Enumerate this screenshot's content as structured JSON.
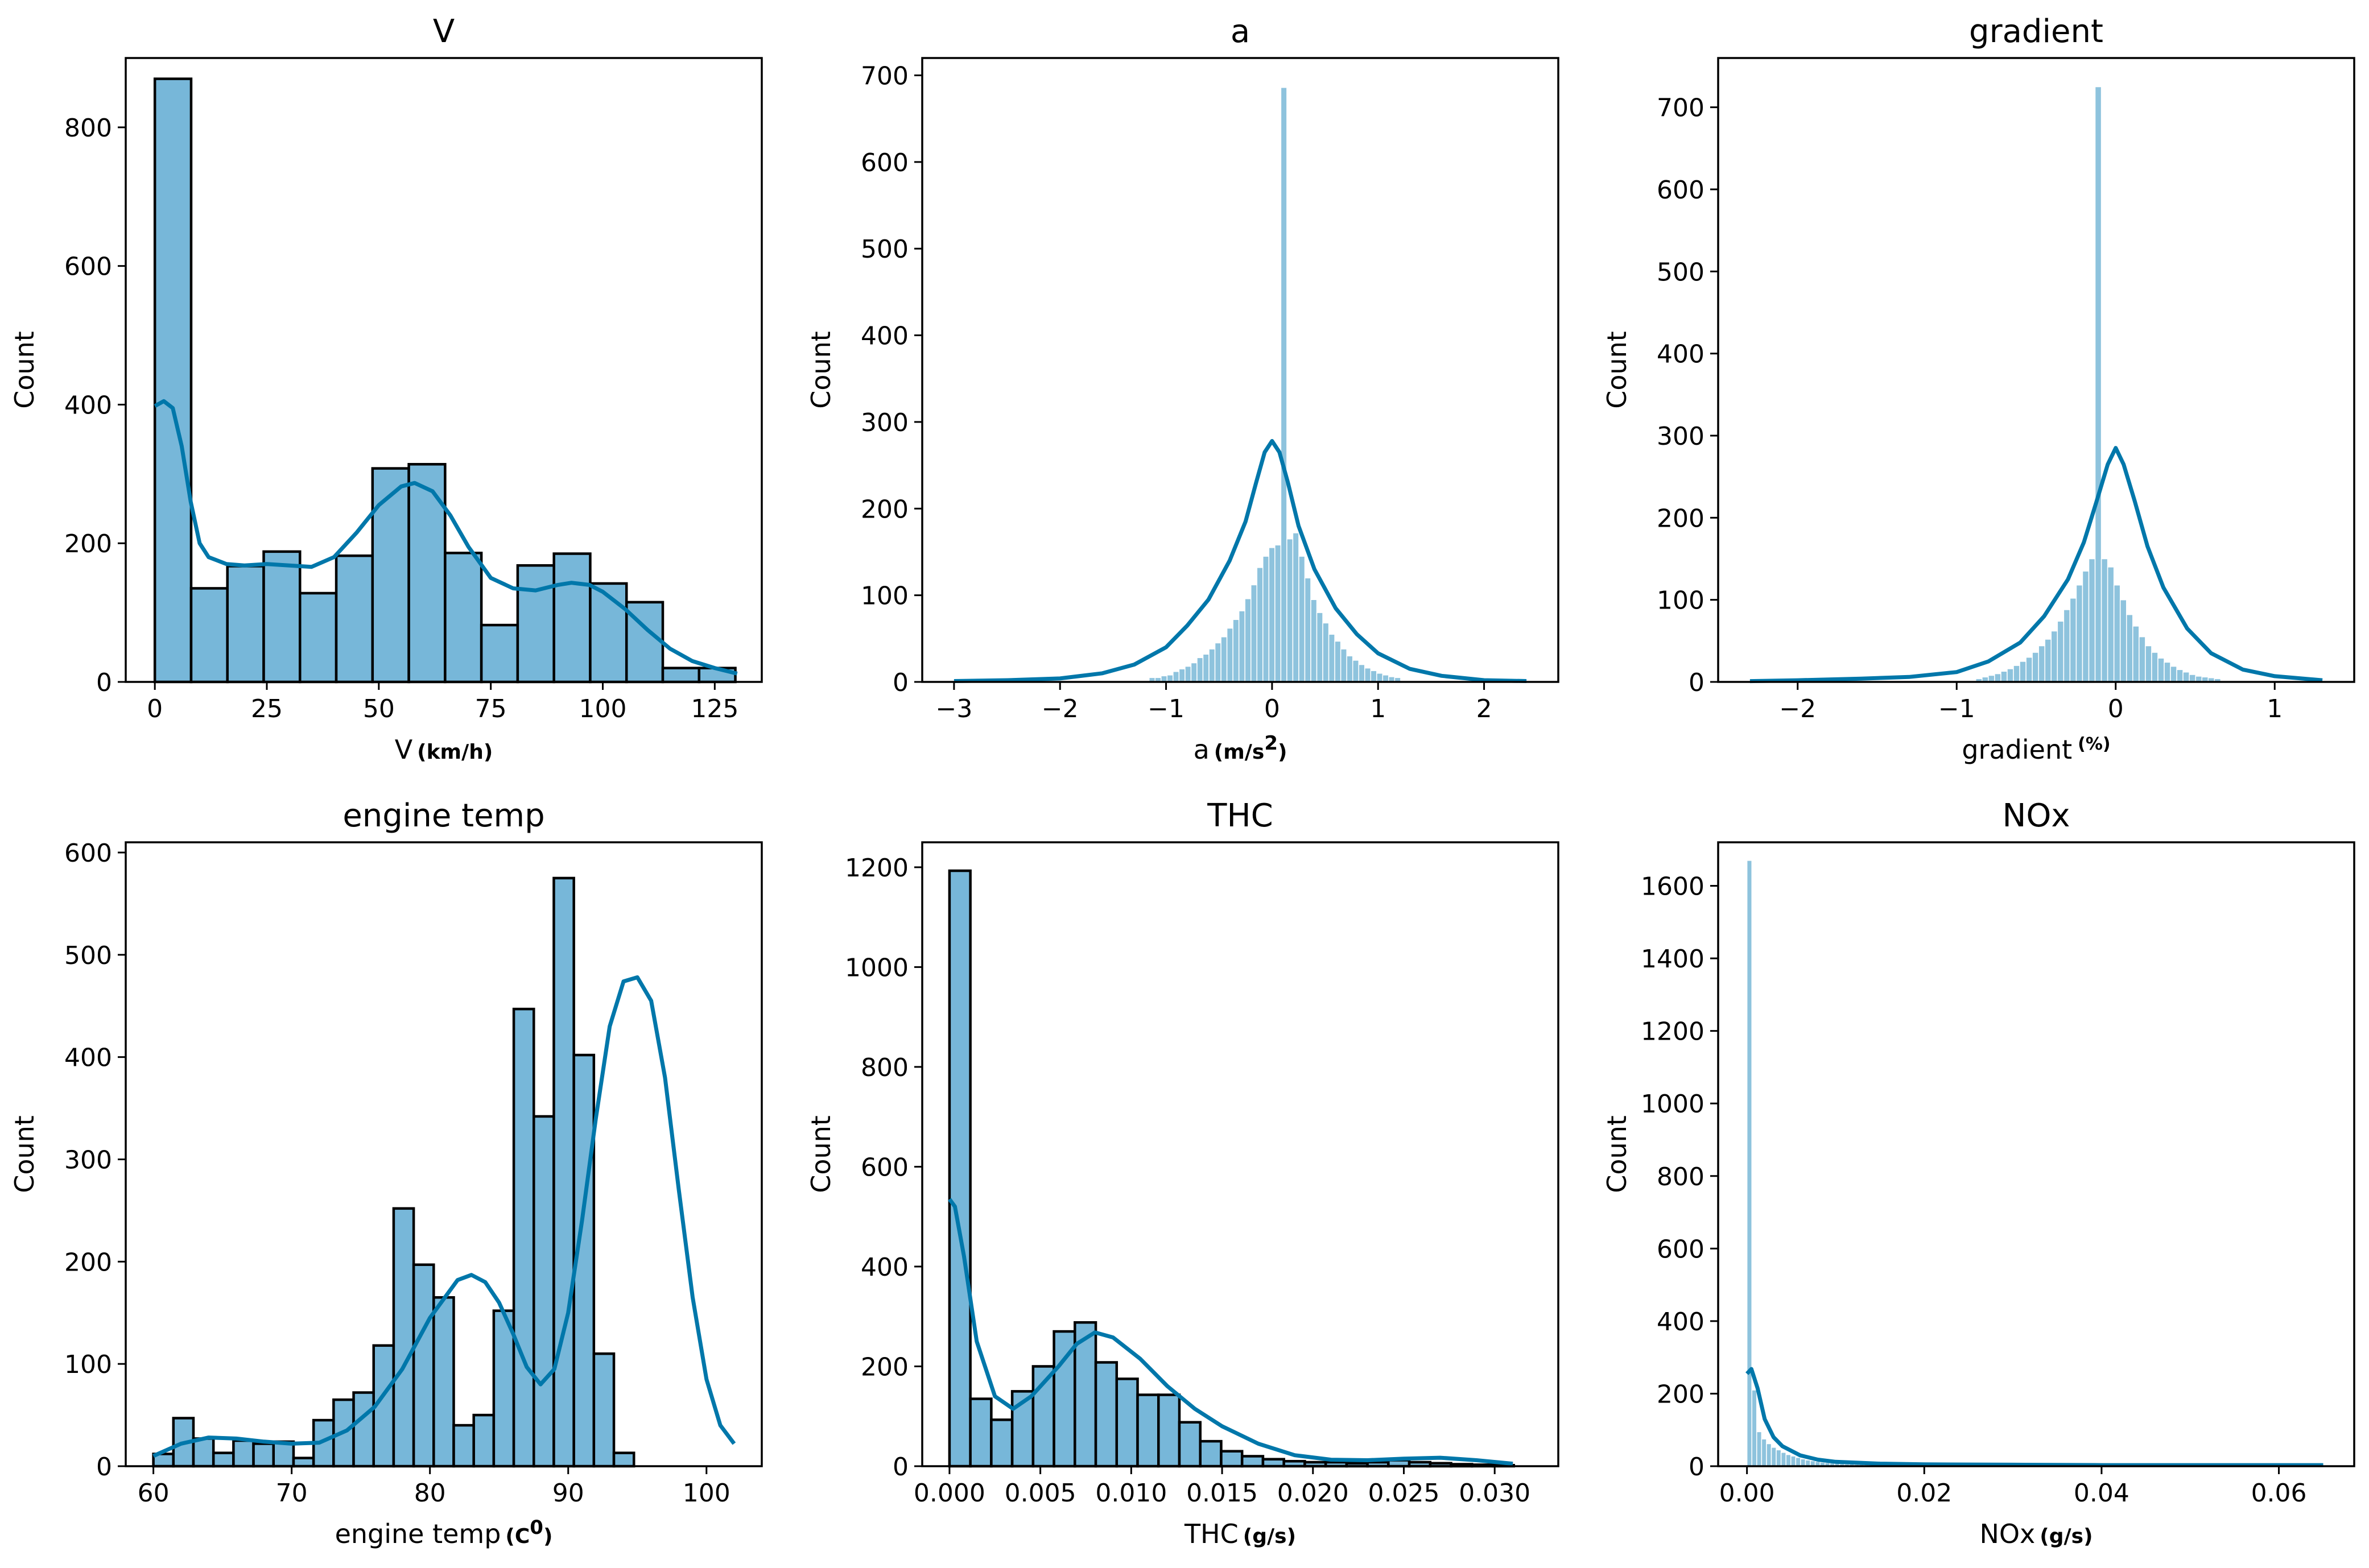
{
  "figure": {
    "layout": "2x3 grid of histograms with KDE curves"
  },
  "colors": {
    "bar_fill": "#77b7d9",
    "bar_edge": "#000000",
    "kde_line": "#0077aa",
    "thin_bar_fill": "#8ec3dd",
    "thin_bar_edge": "#5a9fc4"
  },
  "chart_data": [
    {
      "type": "bar",
      "title": "V",
      "xlabel_main": "V",
      "xlabel_unit": "(km/h)",
      "xlabel_sup": "",
      "ylabel": "Count",
      "xlim": [
        -6.5,
        135.5
      ],
      "ylim": [
        0,
        900
      ],
      "xticks": [
        0,
        25,
        50,
        75,
        100,
        125
      ],
      "xtick_labels": [
        "0",
        "25",
        "50",
        "75",
        "100",
        "125"
      ],
      "yticks": [
        0,
        200,
        400,
        600,
        800
      ],
      "ytick_labels": [
        "0",
        "200",
        "400",
        "600",
        "800"
      ],
      "bin_start": 0,
      "bin_width": 8.1,
      "edge": "black",
      "values": [
        870,
        135,
        167,
        188,
        128,
        182,
        308,
        314,
        186,
        82,
        168,
        185,
        142,
        115,
        20,
        20
      ],
      "kde": [
        [
          0,
          398
        ],
        [
          2,
          405
        ],
        [
          4,
          395
        ],
        [
          6,
          340
        ],
        [
          8,
          260
        ],
        [
          10,
          200
        ],
        [
          12,
          180
        ],
        [
          16,
          170
        ],
        [
          20,
          168
        ],
        [
          25,
          170
        ],
        [
          30,
          168
        ],
        [
          35,
          166
        ],
        [
          40,
          180
        ],
        [
          45,
          215
        ],
        [
          50,
          255
        ],
        [
          55,
          282
        ],
        [
          58,
          287
        ],
        [
          62,
          275
        ],
        [
          66,
          240
        ],
        [
          70,
          195
        ],
        [
          75,
          150
        ],
        [
          80,
          135
        ],
        [
          85,
          132
        ],
        [
          90,
          140
        ],
        [
          93,
          143
        ],
        [
          97,
          140
        ],
        [
          100,
          130
        ],
        [
          105,
          105
        ],
        [
          110,
          75
        ],
        [
          115,
          48
        ],
        [
          120,
          30
        ],
        [
          125,
          20
        ],
        [
          130,
          12
        ]
      ]
    },
    {
      "type": "bar",
      "title": "a",
      "xlabel_main": "a",
      "xlabel_unit": "(m/s",
      "xlabel_sup": "2",
      "xlabel_unit_end": ")",
      "ylabel": "Count",
      "xlim": [
        -3.3,
        2.7
      ],
      "ylim": [
        0,
        720
      ],
      "xticks": [
        -3,
        -2,
        -1,
        0,
        1,
        2
      ],
      "xtick_labels": [
        "−3",
        "−2",
        "−1",
        "0",
        "1",
        "2"
      ],
      "yticks": [
        0,
        100,
        200,
        300,
        400,
        500,
        600,
        700
      ],
      "ytick_labels": [
        "0",
        "100",
        "200",
        "300",
        "400",
        "500",
        "600",
        "700"
      ],
      "bin_start": -1.16,
      "bin_width": 0.0565,
      "edge": "thin",
      "values": [
        5,
        5,
        7,
        8,
        12,
        15,
        18,
        22,
        28,
        32,
        38,
        45,
        52,
        62,
        72,
        82,
        96,
        112,
        132,
        145,
        155,
        158,
        686,
        165,
        172,
        145,
        120,
        95,
        80,
        68,
        55,
        47,
        38,
        30,
        25,
        20,
        16,
        13,
        10,
        8,
        6,
        5
      ],
      "kde": [
        [
          -3.0,
          1
        ],
        [
          -2.5,
          2
        ],
        [
          -2.0,
          4
        ],
        [
          -1.6,
          10
        ],
        [
          -1.3,
          20
        ],
        [
          -1.0,
          40
        ],
        [
          -0.8,
          65
        ],
        [
          -0.6,
          95
        ],
        [
          -0.4,
          140
        ],
        [
          -0.25,
          185
        ],
        [
          -0.15,
          230
        ],
        [
          -0.07,
          265
        ],
        [
          0,
          278
        ],
        [
          0.07,
          265
        ],
        [
          0.15,
          230
        ],
        [
          0.25,
          180
        ],
        [
          0.4,
          130
        ],
        [
          0.6,
          85
        ],
        [
          0.8,
          55
        ],
        [
          1.0,
          33
        ],
        [
          1.3,
          15
        ],
        [
          1.6,
          7
        ],
        [
          2.0,
          2
        ],
        [
          2.4,
          1
        ]
      ]
    },
    {
      "type": "bar",
      "title": "gradient",
      "xlabel_main": "gradient",
      "xlabel_unit": "",
      "xlabel_sup": "(%)",
      "ylabel": "Count",
      "xlim": [
        -2.5,
        1.5
      ],
      "ylim": [
        0,
        760
      ],
      "xticks": [
        -2,
        -1,
        0,
        1
      ],
      "xtick_labels": [
        "−2",
        "−1",
        "0",
        "1"
      ],
      "yticks": [
        0,
        100,
        200,
        300,
        400,
        500,
        600,
        700
      ],
      "ytick_labels": [
        "0",
        "100",
        "200",
        "300",
        "400",
        "500",
        "600",
        "700"
      ],
      "bin_start": -0.88,
      "bin_width": 0.0395,
      "edge": "thin",
      "values": [
        4,
        6,
        8,
        10,
        13,
        16,
        20,
        25,
        30,
        36,
        44,
        52,
        62,
        74,
        88,
        102,
        118,
        135,
        150,
        725,
        150,
        140,
        118,
        100,
        82,
        68,
        55,
        44,
        36,
        29,
        24,
        19,
        15,
        12,
        9,
        7,
        6,
        5,
        4
      ],
      "kde": [
        [
          -2.3,
          1
        ],
        [
          -2.0,
          2
        ],
        [
          -1.6,
          4
        ],
        [
          -1.3,
          6
        ],
        [
          -1.0,
          12
        ],
        [
          -0.8,
          25
        ],
        [
          -0.6,
          48
        ],
        [
          -0.45,
          80
        ],
        [
          -0.3,
          125
        ],
        [
          -0.2,
          170
        ],
        [
          -0.12,
          220
        ],
        [
          -0.05,
          265
        ],
        [
          0,
          285
        ],
        [
          0.05,
          265
        ],
        [
          0.12,
          220
        ],
        [
          0.2,
          165
        ],
        [
          0.3,
          115
        ],
        [
          0.45,
          65
        ],
        [
          0.6,
          35
        ],
        [
          0.8,
          15
        ],
        [
          1.0,
          7
        ],
        [
          1.3,
          2
        ]
      ]
    },
    {
      "type": "bar",
      "title": "engine temp",
      "xlabel_main": "engine temp",
      "xlabel_unit": "(C",
      "xlabel_sup": "0",
      "xlabel_unit_end": ")",
      "ylabel": "Count",
      "xlim": [
        58.0,
        104.0
      ],
      "ylim": [
        0,
        610
      ],
      "xticks": [
        60,
        70,
        80,
        90,
        100
      ],
      "xtick_labels": [
        "60",
        "70",
        "80",
        "90",
        "100"
      ],
      "yticks": [
        0,
        100,
        200,
        300,
        400,
        500,
        600
      ],
      "ytick_labels": [
        "0",
        "100",
        "200",
        "300",
        "400",
        "500",
        "600"
      ],
      "bin_start": 60,
      "bin_width": 1.448,
      "edge": "black",
      "values": [
        12,
        47,
        27,
        13,
        25,
        22,
        24,
        8,
        45,
        65,
        72,
        118,
        252,
        197,
        165,
        40,
        50,
        152,
        447,
        342,
        575,
        402,
        110,
        13
      ],
      "kde": [
        [
          60,
          10
        ],
        [
          62,
          22
        ],
        [
          64,
          28
        ],
        [
          66,
          27
        ],
        [
          68,
          24
        ],
        [
          70,
          22
        ],
        [
          72,
          23
        ],
        [
          74,
          35
        ],
        [
          76,
          58
        ],
        [
          78,
          95
        ],
        [
          80,
          145
        ],
        [
          82,
          182
        ],
        [
          83,
          187
        ],
        [
          84,
          180
        ],
        [
          85,
          160
        ],
        [
          86,
          130
        ],
        [
          87,
          97
        ],
        [
          88,
          80
        ],
        [
          89,
          95
        ],
        [
          90,
          150
        ],
        [
          91,
          240
        ],
        [
          92,
          340
        ],
        [
          93,
          430
        ],
        [
          94,
          474
        ],
        [
          95,
          478
        ],
        [
          96,
          455
        ],
        [
          97,
          380
        ],
        [
          98,
          270
        ],
        [
          99,
          165
        ],
        [
          100,
          85
        ],
        [
          101,
          40
        ],
        [
          102,
          22
        ]
      ]
    },
    {
      "type": "bar",
      "title": "THC",
      "xlabel_main": "THC",
      "xlabel_unit": "(g/s)",
      "xlabel_sup": "",
      "ylabel": "Count",
      "xlim": [
        -0.0015,
        0.0335
      ],
      "ylim": [
        0,
        1250
      ],
      "xticks": [
        0.0,
        0.005,
        0.01,
        0.015,
        0.02,
        0.025,
        0.03
      ],
      "xtick_labels": [
        "0.000",
        "0.005",
        "0.010",
        "0.015",
        "0.020",
        "0.025",
        "0.030"
      ],
      "yticks": [
        0,
        200,
        400,
        600,
        800,
        1000,
        1200
      ],
      "ytick_labels": [
        "0",
        "200",
        "400",
        "600",
        "800",
        "1000",
        "1200"
      ],
      "bin_start": 0,
      "bin_width": 0.00115,
      "edge": "black",
      "values": [
        1193,
        135,
        93,
        150,
        200,
        270,
        288,
        208,
        175,
        143,
        143,
        88,
        50,
        30,
        20,
        14,
        10,
        8,
        8,
        6,
        8,
        12,
        8,
        6,
        4,
        3,
        2
      ],
      "kde": [
        [
          0,
          535
        ],
        [
          0.0003,
          520
        ],
        [
          0.0008,
          420
        ],
        [
          0.0015,
          250
        ],
        [
          0.0025,
          140
        ],
        [
          0.0035,
          115
        ],
        [
          0.0045,
          140
        ],
        [
          0.006,
          200
        ],
        [
          0.007,
          245
        ],
        [
          0.008,
          268
        ],
        [
          0.009,
          258
        ],
        [
          0.0105,
          215
        ],
        [
          0.012,
          160
        ],
        [
          0.0135,
          115
        ],
        [
          0.015,
          80
        ],
        [
          0.017,
          45
        ],
        [
          0.019,
          22
        ],
        [
          0.021,
          13
        ],
        [
          0.023,
          12
        ],
        [
          0.025,
          15
        ],
        [
          0.027,
          17
        ],
        [
          0.029,
          12
        ],
        [
          0.031,
          5
        ]
      ]
    },
    {
      "type": "bar",
      "title": "NOx",
      "xlabel_main": "NOx",
      "xlabel_unit": "(g/s)",
      "xlabel_sup": "",
      "ylabel": "Count",
      "xlim": [
        -0.00325,
        0.0685
      ],
      "ylim": [
        0,
        1720
      ],
      "xticks": [
        0.0,
        0.02,
        0.04,
        0.06
      ],
      "xtick_labels": [
        "0.00",
        "0.02",
        "0.04",
        "0.06"
      ],
      "yticks": [
        0,
        200,
        400,
        600,
        800,
        1000,
        1200,
        1400,
        1600
      ],
      "ytick_labels": [
        "0",
        "200",
        "400",
        "600",
        "800",
        "1000",
        "1200",
        "1400",
        "1600"
      ],
      "bin_start": 0,
      "bin_width": 0.00055,
      "edge": "thin",
      "values": [
        1670,
        210,
        95,
        75,
        62,
        52,
        45,
        38,
        32,
        28,
        24,
        20,
        17,
        15,
        13,
        11,
        10,
        9,
        8,
        7,
        6,
        6,
        5,
        5,
        4,
        4,
        4,
        3,
        3,
        3
      ],
      "kde": [
        [
          0,
          255
        ],
        [
          0.0005,
          268
        ],
        [
          0.0012,
          215
        ],
        [
          0.002,
          130
        ],
        [
          0.003,
          80
        ],
        [
          0.004,
          55
        ],
        [
          0.006,
          30
        ],
        [
          0.008,
          18
        ],
        [
          0.01,
          12
        ],
        [
          0.015,
          7
        ],
        [
          0.02,
          5
        ],
        [
          0.03,
          4
        ],
        [
          0.04,
          3
        ],
        [
          0.05,
          3
        ],
        [
          0.06,
          3
        ],
        [
          0.065,
          3
        ]
      ]
    }
  ]
}
